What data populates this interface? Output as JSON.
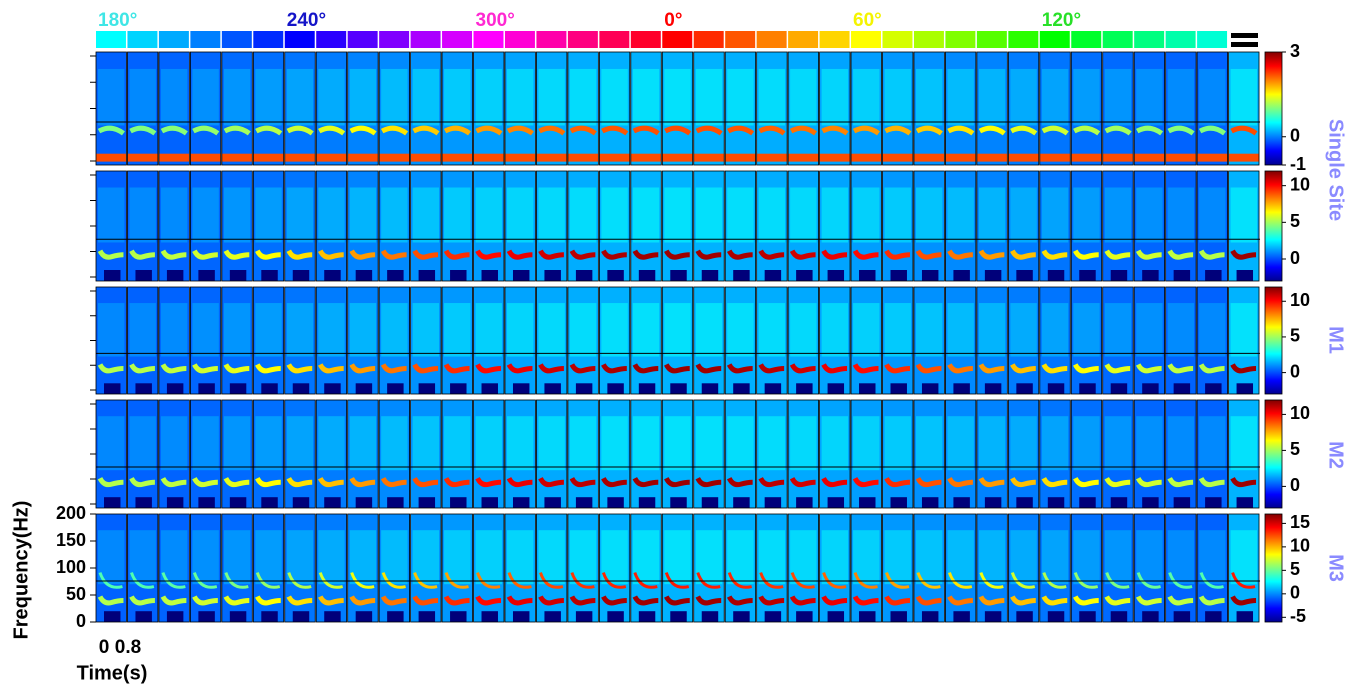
{
  "angle_labels": [
    {
      "text": "180°",
      "color": "#3fe6e6"
    },
    {
      "text": "240°",
      "color": "#1414c8"
    },
    {
      "text": "300°",
      "color": "#ff28d2"
    },
    {
      "text": "0°",
      "color": "#ff0000"
    },
    {
      "text": "60°",
      "color": "#f4f400"
    },
    {
      "text": "120°",
      "color": "#28e028"
    }
  ],
  "row_labels": [
    "Single Site",
    "M1",
    "M2",
    "M3"
  ],
  "colorbars": [
    {
      "lim": [
        -1,
        3
      ],
      "ticks": [
        -1,
        0,
        3
      ]
    },
    {
      "lim": [
        -3,
        12
      ],
      "ticks": [
        0,
        5,
        10
      ]
    },
    {
      "lim": [
        -3,
        12
      ],
      "ticks": [
        0,
        5,
        10
      ]
    },
    {
      "lim": [
        -3,
        12
      ],
      "ticks": [
        0,
        5,
        10
      ]
    },
    {
      "lim": [
        -6,
        17
      ],
      "ticks": [
        -5,
        0,
        5,
        10,
        15
      ]
    }
  ],
  "frequency_axis": {
    "label": "Frequency(Hz)",
    "lim": [
      0,
      200
    ],
    "ticks": [
      0,
      50,
      100,
      150,
      200
    ]
  },
  "time_axis": {
    "label": "Time(s)",
    "ticks": [
      0,
      0.8
    ]
  }
}
